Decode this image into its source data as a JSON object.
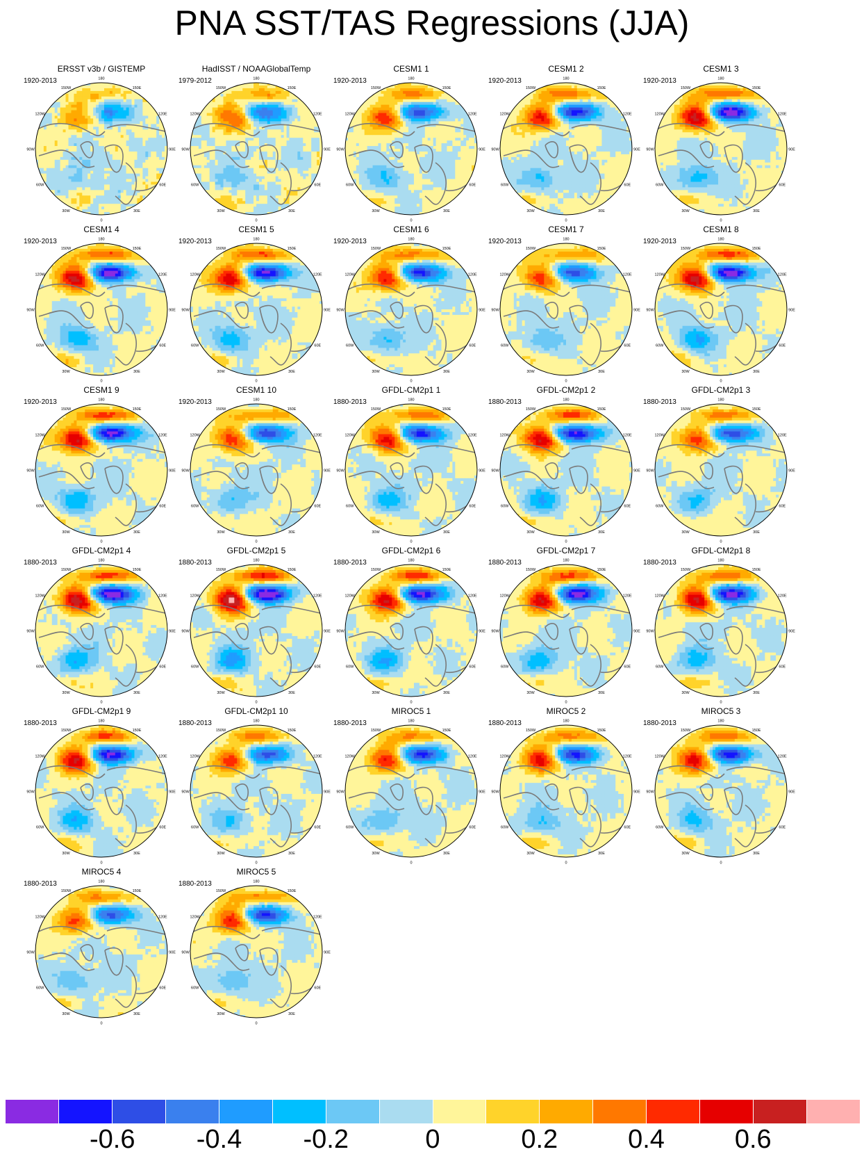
{
  "figure": {
    "title": "PNA SST/TAS Regressions (JJA)"
  },
  "lon_labels": [
    "180",
    "150E",
    "120E",
    "90E",
    "60E",
    "30E",
    "0",
    "30W",
    "60W",
    "90W",
    "120W",
    "150W"
  ],
  "panels": [
    {
      "title": "ERSST v3b / GISTEMP",
      "period": "1920-2013",
      "amp": 0.35,
      "obs": true
    },
    {
      "title": "HadISST / NOAAGlobalTemp",
      "period": "1979-2012",
      "amp": 0.45,
      "obs": true
    },
    {
      "title": "CESM1 1",
      "period": "1920-2013",
      "amp": 0.55
    },
    {
      "title": "CESM1 2",
      "period": "1920-2013",
      "amp": 0.65
    },
    {
      "title": "CESM1 3",
      "period": "1920-2013",
      "amp": 0.75
    },
    {
      "title": "CESM1 4",
      "period": "1920-2013",
      "amp": 0.75
    },
    {
      "title": "CESM1 5",
      "period": "1920-2013",
      "amp": 0.75
    },
    {
      "title": "CESM1 6",
      "period": "1920-2013",
      "amp": 0.65
    },
    {
      "title": "CESM1 7",
      "period": "1920-2013",
      "amp": 0.55
    },
    {
      "title": "CESM1 8",
      "period": "1920-2013",
      "amp": 0.8
    },
    {
      "title": "CESM1 9",
      "period": "1920-2013",
      "amp": 0.8
    },
    {
      "title": "CESM1 10",
      "period": "1920-2013",
      "amp": 0.6
    },
    {
      "title": "GFDL-CM2p1 1",
      "period": "1880-2013",
      "amp": 0.65
    },
    {
      "title": "GFDL-CM2p1 2",
      "period": "1880-2013",
      "amp": 0.75
    },
    {
      "title": "GFDL-CM2p1 3",
      "period": "1880-2013",
      "amp": 0.6
    },
    {
      "title": "GFDL-CM2p1 4",
      "period": "1880-2013",
      "amp": 0.8
    },
    {
      "title": "GFDL-CM2p1 5",
      "period": "1880-2013",
      "amp": 0.85
    },
    {
      "title": "GFDL-CM2p1 6",
      "period": "1880-2013",
      "amp": 0.75
    },
    {
      "title": "GFDL-CM2p1 7",
      "period": "1880-2013",
      "amp": 0.75
    },
    {
      "title": "GFDL-CM2p1 8",
      "period": "1880-2013",
      "amp": 0.7
    },
    {
      "title": "GFDL-CM2p1 9",
      "period": "1880-2013",
      "amp": 0.7
    },
    {
      "title": "GFDL-CM2p1 10",
      "period": "1880-2013",
      "amp": 0.55
    },
    {
      "title": "MIROC5 1",
      "period": "1880-2013",
      "amp": 0.6
    },
    {
      "title": "MIROC5 2",
      "period": "1880-2013",
      "amp": 0.6
    },
    {
      "title": "MIROC5 3",
      "period": "1880-2013",
      "amp": 0.65
    },
    {
      "title": "MIROC5 4",
      "period": "1880-2013",
      "amp": 0.55
    },
    {
      "title": "MIROC5 5",
      "period": "1880-2013",
      "amp": 0.6
    }
  ],
  "colorbar": {
    "colors": [
      "#8a2be2",
      "#1414ff",
      "#2e4ee6",
      "#3a80ee",
      "#1f9cff",
      "#00bfff",
      "#6cc8f5",
      "#aadcf0",
      "#fff59a",
      "#ffd32a",
      "#ffaa00",
      "#ff7800",
      "#ff2a00",
      "#e60000",
      "#c82020",
      "#ffb0b0"
    ],
    "labels": [
      "-0.6",
      "-0.4",
      "-0.2",
      "0",
      "0.2",
      "0.4",
      "0.6"
    ],
    "label_boundaries": [
      2,
      4,
      6,
      8,
      10,
      12,
      14
    ]
  }
}
